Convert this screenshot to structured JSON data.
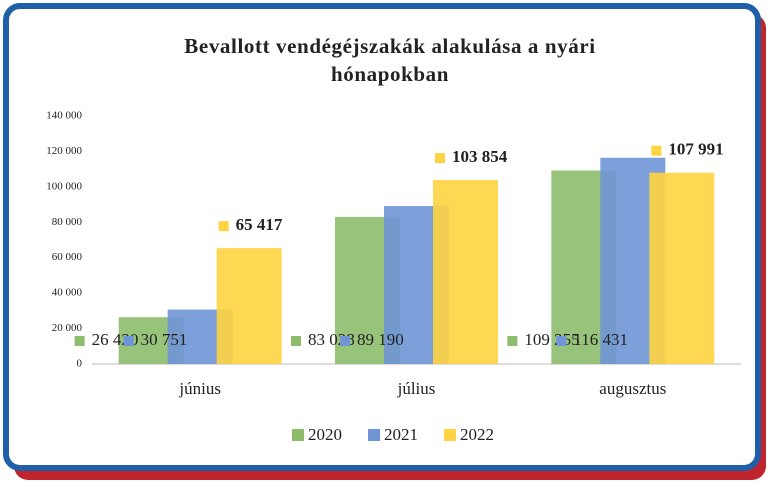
{
  "chart_data": {
    "type": "bar",
    "title": "Bevallott vendégéjszakák alakulása a nyári hónapokban",
    "categories": [
      "június",
      "július",
      "augusztus"
    ],
    "series": [
      {
        "name": "2020",
        "color": "#8dbd6b",
        "values": [
          26420,
          83028,
          109255
        ],
        "value_labels": [
          "26 420",
          "83 028",
          "109 255"
        ]
      },
      {
        "name": "2021",
        "color": "#6f95d6",
        "values": [
          30751,
          89190,
          116431
        ],
        "value_labels": [
          "30 751",
          "89 190",
          "116 431"
        ]
      },
      {
        "name": "2022",
        "color": "#ffd440",
        "values": [
          65417,
          103854,
          107991
        ],
        "value_labels": [
          "65 417",
          "103 854",
          "107 991"
        ]
      }
    ],
    "ylim": [
      0,
      140000
    ],
    "yticks": [
      {
        "value": 0,
        "label": "0"
      },
      {
        "value": 20000,
        "label": "20 000"
      },
      {
        "value": 40000,
        "label": "40 000"
      },
      {
        "value": 60000,
        "label": "60 000"
      },
      {
        "value": 80000,
        "label": "80 000"
      },
      {
        "value": 100000,
        "label": "100 000"
      },
      {
        "value": 120000,
        "label": "120 000"
      },
      {
        "value": 140000,
        "label": "140 000"
      }
    ],
    "grid": false,
    "legend": "bottom"
  }
}
